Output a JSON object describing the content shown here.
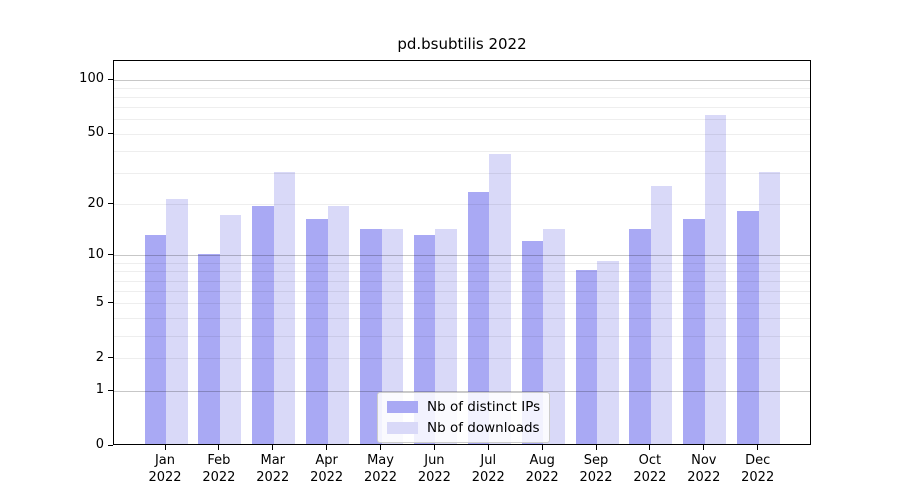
{
  "title": "pd.bsubtilis 2022",
  "colors": {
    "distinct_ips": "#a9a9f4",
    "downloads": "#d9d9f8",
    "axis": "#000000"
  },
  "legend": {
    "items": [
      {
        "label": "Nb of distinct IPs",
        "color": "#a9a9f4"
      },
      {
        "label": "Nb of downloads",
        "color": "#d9d9f8"
      }
    ]
  },
  "y_axis": {
    "tick_labels": [
      "100",
      "50",
      "20",
      "10",
      "5",
      "2",
      "1",
      "0"
    ],
    "tick_values": [
      100,
      50,
      20,
      10,
      5,
      2,
      1,
      0
    ]
  },
  "x_axis": {
    "months": [
      "Jan",
      "Feb",
      "Mar",
      "Apr",
      "May",
      "Jun",
      "Jul",
      "Aug",
      "Sep",
      "Oct",
      "Nov",
      "Dec"
    ],
    "year": "2022"
  },
  "chart_data": {
    "type": "bar",
    "title": "pd.bsubtilis 2022",
    "categories": [
      "Jan 2022",
      "Feb 2022",
      "Mar 2022",
      "Apr 2022",
      "May 2022",
      "Jun 2022",
      "Jul 2022",
      "Aug 2022",
      "Sep 2022",
      "Oct 2022",
      "Nov 2022",
      "Dec 2022"
    ],
    "series": [
      {
        "name": "Nb of distinct IPs",
        "color": "#a9a9f4",
        "values": [
          13,
          10,
          19,
          16,
          14,
          13,
          23,
          12,
          8,
          14,
          16,
          18
        ]
      },
      {
        "name": "Nb of downloads",
        "color": "#d9d9f8",
        "values": [
          21,
          17,
          30,
          19,
          14,
          14,
          38,
          14,
          9,
          25,
          62,
          30
        ]
      }
    ],
    "xlabel": "",
    "ylabel": "",
    "yscale": "log(1+x)",
    "y_ticks": [
      0,
      1,
      2,
      5,
      10,
      20,
      50,
      100
    ],
    "ylim": [
      0,
      127
    ],
    "grid": "both (major darker at 1, 10, 100; minor lighter)",
    "legend_position": "bottom center inside axes"
  }
}
